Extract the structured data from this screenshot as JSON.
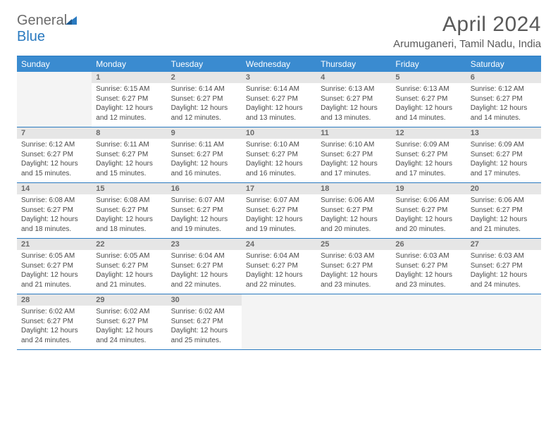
{
  "logo": {
    "text1": "General",
    "text2": "Blue"
  },
  "title": "April 2024",
  "location": "Arumuganeri, Tamil Nadu, India",
  "dayNames": [
    "Sunday",
    "Monday",
    "Tuesday",
    "Wednesday",
    "Thursday",
    "Friday",
    "Saturday"
  ],
  "colors": {
    "header_bg": "#3a8bd0",
    "accent": "#2a7ac0",
    "daynum_bg": "#e6e6e6",
    "text": "#5a5a5a",
    "cell_text": "#4a4a4a"
  },
  "weeks": [
    [
      {
        "n": "",
        "empty": true
      },
      {
        "n": "1",
        "sr": "6:15 AM",
        "ss": "6:27 PM",
        "dl": "12 hours and 12 minutes."
      },
      {
        "n": "2",
        "sr": "6:14 AM",
        "ss": "6:27 PM",
        "dl": "12 hours and 12 minutes."
      },
      {
        "n": "3",
        "sr": "6:14 AM",
        "ss": "6:27 PM",
        "dl": "12 hours and 13 minutes."
      },
      {
        "n": "4",
        "sr": "6:13 AM",
        "ss": "6:27 PM",
        "dl": "12 hours and 13 minutes."
      },
      {
        "n": "5",
        "sr": "6:13 AM",
        "ss": "6:27 PM",
        "dl": "12 hours and 14 minutes."
      },
      {
        "n": "6",
        "sr": "6:12 AM",
        "ss": "6:27 PM",
        "dl": "12 hours and 14 minutes."
      }
    ],
    [
      {
        "n": "7",
        "sr": "6:12 AM",
        "ss": "6:27 PM",
        "dl": "12 hours and 15 minutes."
      },
      {
        "n": "8",
        "sr": "6:11 AM",
        "ss": "6:27 PM",
        "dl": "12 hours and 15 minutes."
      },
      {
        "n": "9",
        "sr": "6:11 AM",
        "ss": "6:27 PM",
        "dl": "12 hours and 16 minutes."
      },
      {
        "n": "10",
        "sr": "6:10 AM",
        "ss": "6:27 PM",
        "dl": "12 hours and 16 minutes."
      },
      {
        "n": "11",
        "sr": "6:10 AM",
        "ss": "6:27 PM",
        "dl": "12 hours and 17 minutes."
      },
      {
        "n": "12",
        "sr": "6:09 AM",
        "ss": "6:27 PM",
        "dl": "12 hours and 17 minutes."
      },
      {
        "n": "13",
        "sr": "6:09 AM",
        "ss": "6:27 PM",
        "dl": "12 hours and 17 minutes."
      }
    ],
    [
      {
        "n": "14",
        "sr": "6:08 AM",
        "ss": "6:27 PM",
        "dl": "12 hours and 18 minutes."
      },
      {
        "n": "15",
        "sr": "6:08 AM",
        "ss": "6:27 PM",
        "dl": "12 hours and 18 minutes."
      },
      {
        "n": "16",
        "sr": "6:07 AM",
        "ss": "6:27 PM",
        "dl": "12 hours and 19 minutes."
      },
      {
        "n": "17",
        "sr": "6:07 AM",
        "ss": "6:27 PM",
        "dl": "12 hours and 19 minutes."
      },
      {
        "n": "18",
        "sr": "6:06 AM",
        "ss": "6:27 PM",
        "dl": "12 hours and 20 minutes."
      },
      {
        "n": "19",
        "sr": "6:06 AM",
        "ss": "6:27 PM",
        "dl": "12 hours and 20 minutes."
      },
      {
        "n": "20",
        "sr": "6:06 AM",
        "ss": "6:27 PM",
        "dl": "12 hours and 21 minutes."
      }
    ],
    [
      {
        "n": "21",
        "sr": "6:05 AM",
        "ss": "6:27 PM",
        "dl": "12 hours and 21 minutes."
      },
      {
        "n": "22",
        "sr": "6:05 AM",
        "ss": "6:27 PM",
        "dl": "12 hours and 21 minutes."
      },
      {
        "n": "23",
        "sr": "6:04 AM",
        "ss": "6:27 PM",
        "dl": "12 hours and 22 minutes."
      },
      {
        "n": "24",
        "sr": "6:04 AM",
        "ss": "6:27 PM",
        "dl": "12 hours and 22 minutes."
      },
      {
        "n": "25",
        "sr": "6:03 AM",
        "ss": "6:27 PM",
        "dl": "12 hours and 23 minutes."
      },
      {
        "n": "26",
        "sr": "6:03 AM",
        "ss": "6:27 PM",
        "dl": "12 hours and 23 minutes."
      },
      {
        "n": "27",
        "sr": "6:03 AM",
        "ss": "6:27 PM",
        "dl": "12 hours and 24 minutes."
      }
    ],
    [
      {
        "n": "28",
        "sr": "6:02 AM",
        "ss": "6:27 PM",
        "dl": "12 hours and 24 minutes."
      },
      {
        "n": "29",
        "sr": "6:02 AM",
        "ss": "6:27 PM",
        "dl": "12 hours and 24 minutes."
      },
      {
        "n": "30",
        "sr": "6:02 AM",
        "ss": "6:27 PM",
        "dl": "12 hours and 25 minutes."
      },
      {
        "n": "",
        "empty": true
      },
      {
        "n": "",
        "empty": true
      },
      {
        "n": "",
        "empty": true
      },
      {
        "n": "",
        "empty": true
      }
    ]
  ],
  "labels": {
    "sunrise": "Sunrise:",
    "sunset": "Sunset:",
    "daylight": "Daylight:"
  }
}
